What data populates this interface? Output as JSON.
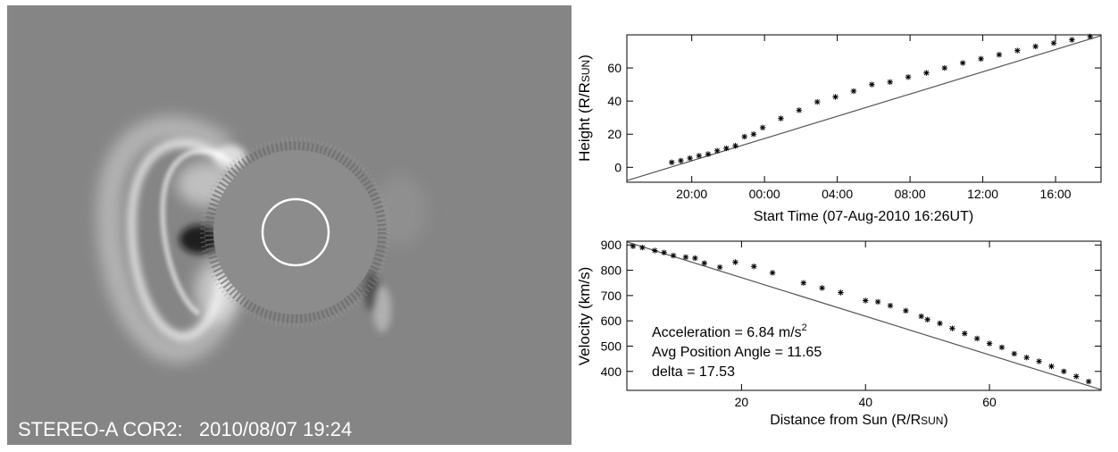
{
  "image": {
    "caption": "STEREO-A COR2:   2010/08/07 19:24",
    "background_color": "#858585",
    "occulter_color": "#8c8c8c",
    "limb_color": "#ffffff"
  },
  "chart_data": [
    {
      "type": "scatter",
      "title": "",
      "xlabel": "Start Time (07-Aug-2010  16:26UT)",
      "ylabel": "Height (R/R",
      "ylabel_sub": "SUN",
      "ylabel_close": ")",
      "xaxis": "time",
      "xlim": [
        "2010-08-07T16:26",
        "2010-08-08T18:30"
      ],
      "ylim": [
        -9,
        80
      ],
      "xticks": [
        {
          "t": "2010-08-07T20:00",
          "label": "20:00"
        },
        {
          "t": "2010-08-08T00:00",
          "label": "00:00"
        },
        {
          "t": "2010-08-08T04:00",
          "label": "04:00"
        },
        {
          "t": "2010-08-08T08:00",
          "label": "08:00"
        },
        {
          "t": "2010-08-08T12:00",
          "label": "12:00"
        },
        {
          "t": "2010-08-08T16:00",
          "label": "16:00"
        }
      ],
      "yticks": [
        0,
        20,
        40,
        60
      ],
      "fit": {
        "x": [
          "2010-08-07T16:26",
          "2010-08-08T18:30"
        ],
        "y": [
          -8,
          79.5
        ]
      },
      "series": [
        {
          "x": [
            "2010-08-07T18:54",
            "2010-08-07T19:24",
            "2010-08-07T19:54",
            "2010-08-07T20:24",
            "2010-08-07T20:54",
            "2010-08-07T21:24",
            "2010-08-07T21:54",
            "2010-08-07T22:24",
            "2010-08-07T22:54",
            "2010-08-07T23:24",
            "2010-08-07T23:54",
            "2010-08-08T00:54",
            "2010-08-08T01:54",
            "2010-08-08T02:54",
            "2010-08-08T03:54",
            "2010-08-08T04:54",
            "2010-08-08T05:54",
            "2010-08-08T06:54",
            "2010-08-08T07:54",
            "2010-08-08T08:54",
            "2010-08-08T09:54",
            "2010-08-08T10:54",
            "2010-08-08T11:54",
            "2010-08-08T12:54",
            "2010-08-08T13:54",
            "2010-08-08T14:54",
            "2010-08-08T15:54",
            "2010-08-08T16:54",
            "2010-08-08T17:54"
          ],
          "y": [
            3,
            4,
            5.5,
            7,
            8,
            10,
            11.5,
            13,
            18.5,
            20,
            24,
            29.5,
            34.5,
            39.5,
            42.5,
            46,
            50,
            51.5,
            54.5,
            57,
            60,
            63,
            65.5,
            68,
            70.5,
            73,
            75,
            77,
            79
          ]
        }
      ]
    },
    {
      "type": "scatter",
      "title": "",
      "xlabel": "Distance from Sun (R/R",
      "xlabel_sub": "SUN",
      "xlabel_close": ")",
      "ylabel": "Velocity (km/s)",
      "xlim": [
        1.5,
        78
      ],
      "ylim": [
        325,
        915
      ],
      "xticks": [
        20,
        40,
        60
      ],
      "yticks": [
        400,
        500,
        600,
        700,
        800,
        900
      ],
      "fit": {
        "x": [
          1.5,
          78
        ],
        "y": [
          912,
          328
        ]
      },
      "series": [
        {
          "x": [
            2.5,
            4,
            6,
            7.5,
            9,
            11,
            12.5,
            14,
            16.5,
            19,
            22,
            25,
            30,
            33,
            36,
            40,
            42,
            44,
            46.5,
            49,
            50,
            52,
            54,
            56,
            58,
            60,
            62,
            64,
            66,
            68,
            70,
            72,
            74,
            76
          ],
          "y": [
            895,
            890,
            878,
            870,
            858,
            852,
            848,
            828,
            812,
            832,
            815,
            790,
            750,
            730,
            712,
            680,
            675,
            660,
            640,
            618,
            605,
            590,
            570,
            550,
            530,
            510,
            495,
            470,
            455,
            440,
            420,
            400,
            380,
            360
          ]
        }
      ],
      "annotations": {
        "acceleration": "Acceleration = 6.84 m/s",
        "acceleration_sup": "2",
        "angle": "Avg Position Angle = 11.65",
        "delta": "delta = 17.53"
      }
    }
  ]
}
